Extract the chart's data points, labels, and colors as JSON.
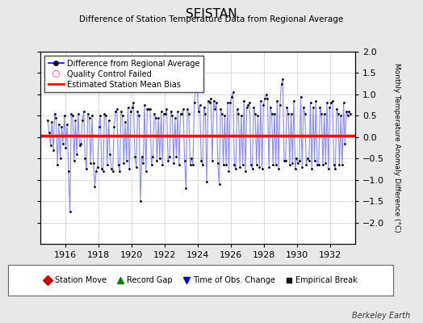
{
  "title": "SEISTAN",
  "subtitle": "Difference of Station Temperature Data from Regional Average",
  "ylabel_right": "Monthly Temperature Anomaly Difference (°C)",
  "credit": "Berkeley Earth",
  "xlim": [
    1914.5,
    1933.5
  ],
  "ylim": [
    -2.5,
    2.0
  ],
  "yticks": [
    -2.0,
    -1.5,
    -1.0,
    -0.5,
    0.0,
    0.5,
    1.0,
    1.5,
    2.0
  ],
  "xticks": [
    1916,
    1918,
    1920,
    1922,
    1924,
    1926,
    1928,
    1930,
    1932
  ],
  "bias_value": 0.03,
  "background_color": "#e8e8e8",
  "plot_bg_color": "#ffffff",
  "line_color": "#8888ff",
  "dot_color": "#000000",
  "bias_color": "#ff0000",
  "time_series": [
    1914.958,
    1915.042,
    1915.125,
    1915.208,
    1915.292,
    1915.375,
    1915.458,
    1915.542,
    1915.625,
    1915.708,
    1915.792,
    1915.875,
    1915.958,
    1916.042,
    1916.125,
    1916.208,
    1916.292,
    1916.375,
    1916.458,
    1916.542,
    1916.625,
    1916.708,
    1916.792,
    1916.875,
    1916.958,
    1917.042,
    1917.125,
    1917.208,
    1917.292,
    1917.375,
    1917.458,
    1917.542,
    1917.625,
    1917.708,
    1917.792,
    1917.875,
    1917.958,
    1918.042,
    1918.125,
    1918.208,
    1918.292,
    1918.375,
    1918.458,
    1918.542,
    1918.625,
    1918.708,
    1918.792,
    1918.875,
    1918.958,
    1919.042,
    1919.125,
    1919.208,
    1919.292,
    1919.375,
    1919.458,
    1919.542,
    1919.625,
    1919.708,
    1919.792,
    1919.875,
    1919.958,
    1920.042,
    1920.125,
    1920.208,
    1920.292,
    1920.375,
    1920.458,
    1920.542,
    1920.625,
    1920.708,
    1920.792,
    1920.875,
    1920.958,
    1921.042,
    1921.125,
    1921.208,
    1921.292,
    1921.375,
    1921.458,
    1921.542,
    1921.625,
    1921.708,
    1921.792,
    1921.875,
    1921.958,
    1922.042,
    1922.125,
    1922.208,
    1922.292,
    1922.375,
    1922.458,
    1922.542,
    1922.625,
    1922.708,
    1922.792,
    1922.875,
    1922.958,
    1923.042,
    1923.125,
    1923.208,
    1923.292,
    1923.375,
    1923.458,
    1923.542,
    1923.625,
    1923.708,
    1923.792,
    1923.875,
    1923.958,
    1924.042,
    1924.125,
    1924.208,
    1924.292,
    1924.375,
    1924.458,
    1924.542,
    1924.625,
    1924.708,
    1924.792,
    1924.875,
    1924.958,
    1925.042,
    1925.125,
    1925.208,
    1925.292,
    1925.375,
    1925.458,
    1925.542,
    1925.625,
    1925.708,
    1925.792,
    1925.875,
    1925.958,
    1926.042,
    1926.125,
    1926.208,
    1926.292,
    1926.375,
    1926.458,
    1926.542,
    1926.625,
    1926.708,
    1926.792,
    1926.875,
    1926.958,
    1927.042,
    1927.125,
    1927.208,
    1927.292,
    1927.375,
    1927.458,
    1927.542,
    1927.625,
    1927.708,
    1927.792,
    1927.875,
    1927.958,
    1928.042,
    1928.125,
    1928.208,
    1928.292,
    1928.375,
    1928.458,
    1928.542,
    1928.625,
    1928.708,
    1928.792,
    1928.875,
    1928.958,
    1929.042,
    1929.125,
    1929.208,
    1929.292,
    1929.375,
    1929.458,
    1929.542,
    1929.625,
    1929.708,
    1929.792,
    1929.875,
    1929.958,
    1930.042,
    1930.125,
    1930.208,
    1930.292,
    1930.375,
    1930.458,
    1930.542,
    1930.625,
    1930.708,
    1930.792,
    1930.875,
    1930.958,
    1931.042,
    1931.125,
    1931.208,
    1931.292,
    1931.375,
    1931.458,
    1931.542,
    1931.625,
    1931.708,
    1931.792,
    1931.875,
    1931.958,
    1932.042,
    1932.125,
    1932.208,
    1932.292,
    1932.375,
    1932.458,
    1932.542,
    1932.625,
    1932.708,
    1932.792,
    1932.875,
    1932.958,
    1933.042,
    1933.125,
    1933.208
  ],
  "values": [
    0.4,
    0.1,
    -0.2,
    0.35,
    -0.3,
    0.55,
    0.45,
    -0.65,
    0.3,
    -0.5,
    0.25,
    -0.15,
    0.5,
    -0.25,
    0.3,
    -0.8,
    -1.75,
    0.55,
    0.5,
    -0.55,
    0.4,
    -0.4,
    0.55,
    -0.2,
    -0.15,
    0.4,
    0.6,
    -0.5,
    -0.75,
    0.55,
    0.45,
    -0.6,
    0.5,
    -0.6,
    -1.15,
    -0.8,
    -0.7,
    0.25,
    0.5,
    -0.75,
    -0.8,
    0.55,
    0.5,
    -0.65,
    0.4,
    -0.4,
    -0.75,
    -0.8,
    0.25,
    0.6,
    0.65,
    -0.65,
    -0.8,
    0.6,
    0.5,
    -0.6,
    0.35,
    -0.55,
    0.7,
    -0.75,
    0.6,
    0.7,
    0.8,
    -0.45,
    -0.7,
    0.6,
    0.5,
    -1.5,
    -0.45,
    -0.6,
    0.75,
    -0.8,
    0.65,
    0.65,
    0.65,
    -0.65,
    -0.45,
    0.55,
    0.45,
    -0.55,
    0.45,
    -0.5,
    0.6,
    -0.65,
    0.55,
    0.55,
    0.65,
    -0.55,
    -0.45,
    0.6,
    0.5,
    -0.6,
    0.45,
    -0.45,
    0.6,
    -0.65,
    0.55,
    0.55,
    0.65,
    -0.55,
    -1.2,
    0.65,
    0.55,
    -0.65,
    -0.5,
    -0.65,
    0.8,
    1.15,
    1.2,
    0.6,
    0.75,
    -0.55,
    -0.65,
    0.7,
    0.55,
    -1.05,
    0.85,
    0.8,
    0.9,
    -0.55,
    0.85,
    0.65,
    0.8,
    -0.6,
    -1.1,
    0.65,
    0.55,
    -0.65,
    0.5,
    -0.65,
    0.8,
    -0.8,
    0.8,
    0.95,
    1.05,
    -0.65,
    -0.75,
    0.65,
    0.55,
    -0.7,
    0.5,
    -0.65,
    0.85,
    -0.8,
    0.7,
    0.75,
    0.8,
    -0.65,
    -0.75,
    0.7,
    0.55,
    -0.65,
    0.5,
    -0.7,
    0.85,
    -0.75,
    0.75,
    0.9,
    1.0,
    0.9,
    -0.7,
    0.7,
    0.55,
    -0.65,
    0.55,
    -0.65,
    0.85,
    -0.75,
    0.75,
    1.25,
    1.35,
    -0.55,
    -0.55,
    0.7,
    0.55,
    -0.65,
    0.55,
    -0.6,
    0.85,
    -0.75,
    -0.5,
    -0.6,
    -0.55,
    0.95,
    -0.7,
    0.7,
    0.55,
    -0.65,
    -0.5,
    -0.55,
    0.8,
    -0.75,
    0.7,
    -0.55,
    0.85,
    -0.65,
    -0.65,
    0.7,
    0.55,
    -0.65,
    0.55,
    -0.6,
    0.8,
    -0.75,
    0.7,
    0.8,
    0.85,
    -0.65,
    -0.75,
    0.65,
    0.55,
    -0.65,
    0.5,
    -0.65,
    0.8,
    -0.15,
    0.6,
    0.5,
    0.6,
    0.55
  ]
}
